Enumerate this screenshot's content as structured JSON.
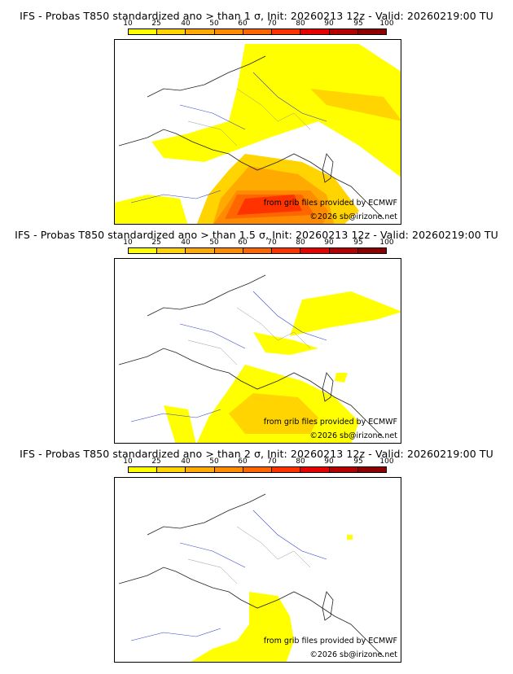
{
  "palette": [
    "#ffff00",
    "#ffd400",
    "#ffaa00",
    "#ff8c00",
    "#ff6600",
    "#ff3300",
    "#e60000",
    "#b40000",
    "#8c0000"
  ],
  "scale_ticks": [
    "10",
    "25",
    "40",
    "50",
    "60",
    "70",
    "80",
    "90",
    "95",
    "100"
  ],
  "panels": [
    {
      "title": "IFS - Probas T850  standardized ano > than 1 σ, Init: 20260213 12z - Valid: 20260219:00 TU",
      "credit_source": "from grib files provided by ECMWF",
      "credit_copyright": "©2026 sb@irizone.net"
    },
    {
      "title": "IFS - Probas T850  standardized ano > than 1.5 σ, Init: 20260213 12z - Valid: 20260219:00 TU",
      "credit_source": "from grib files provided by ECMWF",
      "credit_copyright": "©2026 sb@irizone.net"
    },
    {
      "title": "IFS - Probas T850  standardized ano > than 2 σ, Init: 20260213 12z - Valid: 20260219:00 TU",
      "credit_source": "from grib files provided by ECMWF",
      "credit_copyright": "©2026 sb@irizone.net"
    }
  ]
}
